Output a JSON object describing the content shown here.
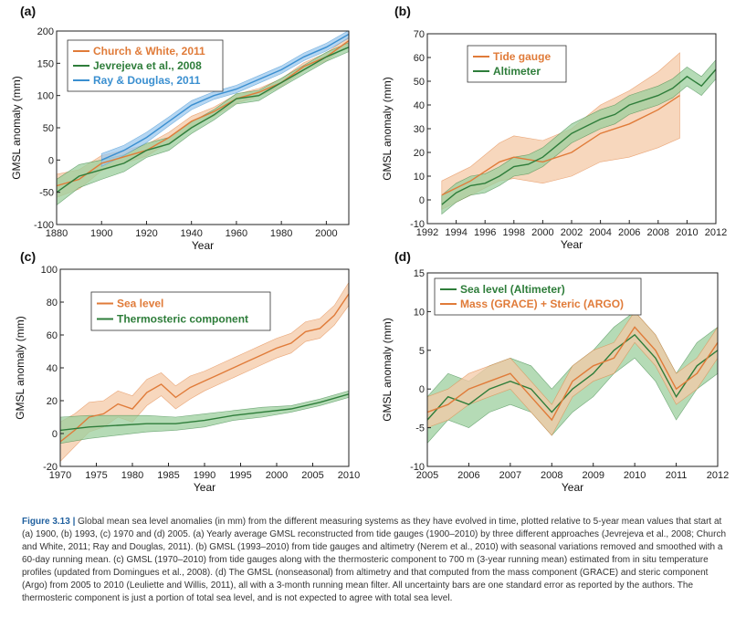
{
  "colors": {
    "orange": "#e07b39",
    "orange_fill": "#f4c9a7",
    "green": "#2e7d3a",
    "green_fill": "#9ccf9e",
    "blue": "#3a8fd0",
    "blue_fill": "#9cc8ee",
    "caption_accent": "#1f5f9e"
  },
  "caption": {
    "label": "Figure 3.13 |",
    "text": " Global mean sea level anomalies (in mm) from the different measuring systems as they have evolved in time, plotted relative to 5-year mean values that start at (a) 1900, (b) 1993, (c) 1970 and (d) 2005. (a) Yearly average GMSL reconstructed from tide gauges (1900–2010) by three different approaches (Jevrejeva et al., 2008; Church and White, 2011; Ray and Douglas, 2011). (b) GMSL (1993–2010) from tide gauges and altimetry (Nerem et al., 2010) with seasonal variations removed and smoothed with a 60-day running mean. (c) GMSL (1970–2010) from tide gauges along with the thermosteric component to 700 m (3-year running mean) estimated from in situ temperature profiles (updated from Domingues et al., 2008). (d) The GMSL (nonseasonal) from altimetry and that computed from the mass component (GRACE) and steric component (Argo) from 2005 to 2010 (Leuliette and Willis, 2011), all with a 3-month running mean filter. All uncertainty bars are one standard error as reported by the authors. The thermosteric component is just a portion of total sea level, and is not expected to agree with total sea level."
  },
  "chart_data": [
    {
      "panel": "(a)",
      "type": "line",
      "xlabel": "Year",
      "ylabel": "GMSL anomaly (mm)",
      "xlim": [
        1880,
        2010
      ],
      "ylim": [
        -100,
        200
      ],
      "xticks": [
        "1880",
        "1900",
        "1920",
        "1940",
        "1960",
        "1980",
        "2000"
      ],
      "yticks": [
        "-100",
        "-50",
        "0",
        "50",
        "100",
        "150",
        "200"
      ],
      "legend": "top-left",
      "series": [
        {
          "name": "Church & White, 2011",
          "color": "orange",
          "x": [
            1880,
            1890,
            1900,
            1910,
            1920,
            1930,
            1940,
            1950,
            1960,
            1970,
            1980,
            1990,
            2000,
            2010
          ],
          "y": [
            -40,
            -30,
            -5,
            5,
            15,
            35,
            60,
            75,
            95,
            105,
            120,
            145,
            160,
            185
          ],
          "err": [
            18,
            15,
            12,
            10,
            9,
            8,
            8,
            7,
            7,
            6,
            6,
            6,
            6,
            6
          ]
        },
        {
          "name": "Jevrejeva et al., 2008",
          "color": "green",
          "x": [
            1880,
            1890,
            1900,
            1910,
            1920,
            1930,
            1940,
            1950,
            1960,
            1970,
            1980,
            1990,
            2000,
            2010
          ],
          "y": [
            -50,
            -25,
            -15,
            -5,
            15,
            25,
            50,
            70,
            95,
            100,
            120,
            140,
            160,
            175
          ],
          "err": [
            20,
            18,
            15,
            13,
            11,
            10,
            9,
            8,
            8,
            8,
            7,
            7,
            7,
            7
          ]
        },
        {
          "name": "Ray & Douglas, 2011",
          "color": "blue",
          "x": [
            1900,
            1910,
            1920,
            1930,
            1940,
            1950,
            1960,
            1970,
            1980,
            1990,
            2000,
            2010
          ],
          "y": [
            0,
            15,
            35,
            60,
            85,
            100,
            110,
            125,
            140,
            160,
            175,
            195
          ],
          "err": [
            10,
            8,
            8,
            7,
            7,
            6,
            6,
            6,
            6,
            6,
            6,
            6
          ]
        }
      ]
    },
    {
      "panel": "(b)",
      "type": "line",
      "xlabel": "Year",
      "ylabel": "GMSL anomaly (mm)",
      "xlim": [
        1992,
        2012
      ],
      "ylim": [
        -10,
        70
      ],
      "xticks": [
        "1992",
        "1994",
        "1996",
        "1998",
        "2000",
        "2002",
        "2004",
        "2006",
        "2008",
        "2010",
        "2012"
      ],
      "yticks": [
        "-10",
        "0",
        "10",
        "20",
        "30",
        "40",
        "50",
        "60",
        "70"
      ],
      "legend": "top-left",
      "series": [
        {
          "name": "Tide gauge",
          "color": "orange",
          "x": [
            1993,
            1995,
            1997,
            1998,
            2000,
            2002,
            2004,
            2006,
            2008,
            2009.5
          ],
          "y": [
            2,
            8,
            16,
            18,
            16,
            20,
            28,
            32,
            38,
            44
          ],
          "err": [
            6,
            6,
            8,
            9,
            9,
            10,
            12,
            14,
            16,
            18
          ]
        },
        {
          "name": "Altimeter",
          "color": "green",
          "x": [
            1993,
            1994,
            1995,
            1996,
            1997,
            1998,
            1999,
            2000,
            2001,
            2002,
            2003,
            2004,
            2005,
            2006,
            2007,
            2008,
            2009,
            2010,
            2011,
            2012
          ],
          "y": [
            -2,
            3,
            6,
            7,
            10,
            14,
            15,
            18,
            23,
            28,
            31,
            34,
            36,
            40,
            42,
            44,
            47,
            52,
            48,
            55
          ],
          "err": [
            4,
            4,
            4,
            4,
            4,
            4,
            4,
            4,
            4,
            4,
            4,
            4,
            4,
            4,
            4,
            4,
            4,
            4,
            4,
            4
          ]
        }
      ]
    },
    {
      "panel": "(c)",
      "type": "line",
      "xlabel": "Year",
      "ylabel": "GMSL anomaly (mm)",
      "xlim": [
        1970,
        2010
      ],
      "ylim": [
        -20,
        100
      ],
      "xticks": [
        "1970",
        "1975",
        "1980",
        "1985",
        "1990",
        "1995",
        "2000",
        "2005",
        "2010"
      ],
      "yticks": [
        "-20",
        "0",
        "20",
        "40",
        "60",
        "80",
        "100"
      ],
      "legend": "top-left",
      "series": [
        {
          "name": "Sea level",
          "color": "orange",
          "x": [
            1970,
            1972,
            1974,
            1976,
            1978,
            1980,
            1982,
            1984,
            1986,
            1988,
            1990,
            1992,
            1994,
            1996,
            1998,
            2000,
            2002,
            2004,
            2006,
            2008,
            2010
          ],
          "y": [
            -5,
            2,
            10,
            12,
            18,
            15,
            25,
            30,
            22,
            28,
            32,
            36,
            40,
            44,
            48,
            52,
            55,
            62,
            64,
            72,
            85
          ],
          "err": [
            12,
            10,
            9,
            8,
            8,
            8,
            8,
            7,
            7,
            7,
            6,
            6,
            6,
            6,
            6,
            6,
            6,
            6,
            6,
            6,
            7
          ]
        },
        {
          "name": "Thermosteric component",
          "color": "green",
          "x": [
            1970,
            1974,
            1978,
            1982,
            1986,
            1990,
            1994,
            1998,
            2002,
            2006,
            2010
          ],
          "y": [
            2,
            4,
            5,
            6,
            6,
            8,
            11,
            13,
            15,
            19,
            24
          ],
          "err": [
            8,
            7,
            6,
            5,
            4,
            4,
            3,
            3,
            2,
            2,
            2
          ]
        }
      ]
    },
    {
      "panel": "(d)",
      "type": "line",
      "xlabel": "Year",
      "ylabel": "GMSL anomaly (mm)",
      "xlim": [
        2005,
        2012
      ],
      "ylim": [
        -10,
        15
      ],
      "xticks": [
        "2005",
        "2006",
        "2007",
        "2008",
        "2009",
        "2010",
        "2011",
        "2012"
      ],
      "yticks": [
        "-10",
        "-5",
        "0",
        "5",
        "10",
        "15"
      ],
      "legend": "top-left",
      "series": [
        {
          "name": "Sea level (Altimeter)",
          "color": "green",
          "x": [
            2005,
            2005.5,
            2006,
            2006.5,
            2007,
            2007.5,
            2008,
            2008.5,
            2009,
            2009.5,
            2010,
            2010.5,
            2011,
            2011.5,
            2012
          ],
          "y": [
            -4,
            -1,
            -2,
            0,
            1,
            0,
            -3,
            0,
            2,
            5,
            7,
            4,
            -1,
            3,
            5
          ],
          "err": [
            3,
            3,
            3,
            3,
            3,
            3,
            3,
            3,
            3,
            3,
            3,
            3,
            3,
            3,
            3
          ]
        },
        {
          "name": "Mass (GRACE) + Steric (ARGO)",
          "color": "orange",
          "x": [
            2005,
            2005.5,
            2006,
            2006.5,
            2007,
            2007.5,
            2008,
            2008.5,
            2009,
            2009.5,
            2010,
            2010.5,
            2011,
            2011.5,
            2012
          ],
          "y": [
            -3,
            -2,
            0,
            1,
            2,
            -1,
            -4,
            1,
            3,
            4,
            8,
            5,
            0,
            2,
            6
          ],
          "err": [
            2,
            2,
            2,
            2,
            2,
            2,
            2,
            2,
            2,
            2,
            2,
            2,
            2,
            2,
            2
          ]
        }
      ]
    }
  ]
}
